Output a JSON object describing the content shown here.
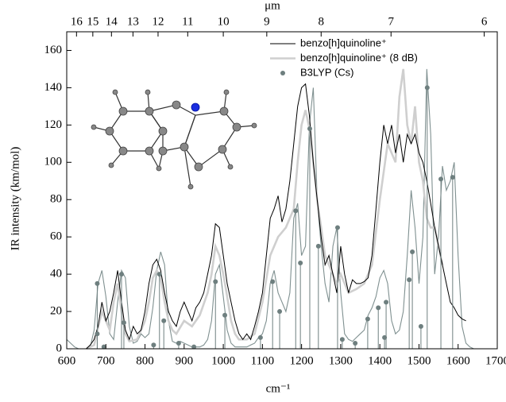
{
  "chart_data": {
    "type": "line",
    "xlabel": "cm⁻¹",
    "ylabel": "IR  intensity  (km/mol)",
    "x2label": "μm",
    "xlim": [
      600,
      1700
    ],
    "xticks": [
      600,
      700,
      800,
      900,
      1000,
      1100,
      1200,
      1300,
      1400,
      1500,
      1600,
      1700
    ],
    "ylim": [
      0,
      170
    ],
    "yticks": [
      0,
      20,
      40,
      60,
      80,
      100,
      120,
      140,
      160
    ],
    "x2ticks": [
      16,
      15,
      14,
      13,
      12,
      11,
      10,
      9,
      8,
      7,
      6
    ],
    "legend_position": "top-right",
    "series": [
      {
        "name": "benzo[h]quinoline⁺",
        "color": "#000000",
        "style": "line",
        "x": [
          650,
          660,
          670,
          680,
          690,
          700,
          710,
          720,
          730,
          740,
          750,
          760,
          770,
          780,
          790,
          800,
          810,
          820,
          830,
          840,
          850,
          860,
          870,
          880,
          890,
          900,
          910,
          920,
          930,
          940,
          950,
          960,
          970,
          980,
          990,
          1000,
          1010,
          1020,
          1030,
          1040,
          1050,
          1060,
          1070,
          1080,
          1090,
          1100,
          1110,
          1120,
          1130,
          1140,
          1150,
          1160,
          1170,
          1180,
          1190,
          1200,
          1210,
          1220,
          1230,
          1240,
          1250,
          1260,
          1270,
          1280,
          1290,
          1300,
          1310,
          1320,
          1330,
          1340,
          1350,
          1360,
          1370,
          1380,
          1390,
          1400,
          1410,
          1420,
          1430,
          1440,
          1450,
          1460,
          1470,
          1480,
          1490,
          1500,
          1510,
          1520,
          1530,
          1540,
          1550,
          1560,
          1570,
          1580,
          1590,
          1600,
          1610,
          1620
        ],
        "values": [
          0,
          2,
          5,
          12,
          25,
          15,
          20,
          30,
          42,
          25,
          10,
          5,
          12,
          8,
          10,
          20,
          35,
          45,
          48,
          42,
          30,
          20,
          15,
          12,
          20,
          25,
          20,
          15,
          22,
          25,
          30,
          40,
          50,
          67,
          65,
          50,
          35,
          25,
          15,
          8,
          5,
          8,
          5,
          12,
          20,
          30,
          50,
          70,
          75,
          82,
          68,
          75,
          90,
          110,
          130,
          140,
          142,
          125,
          100,
          80,
          60,
          45,
          50,
          40,
          30,
          55,
          40,
          30,
          37,
          35,
          35,
          36,
          38,
          50,
          75,
          100,
          120,
          110,
          120,
          105,
          115,
          100,
          115,
          110,
          115,
          105,
          100,
          90,
          78,
          65,
          55,
          45,
          35,
          25,
          22,
          18,
          16,
          15
        ]
      },
      {
        "name": "benzo[h]quinoline⁺ (8 dB)",
        "color": "#cfcfcf",
        "style": "line",
        "x": [
          650,
          670,
          690,
          710,
          720,
          730,
          740,
          750,
          760,
          780,
          800,
          810,
          820,
          830,
          840,
          850,
          860,
          870,
          880,
          900,
          920,
          940,
          960,
          970,
          980,
          990,
          1000,
          1010,
          1020,
          1030,
          1040,
          1060,
          1080,
          1100,
          1120,
          1140,
          1160,
          1180,
          1190,
          1200,
          1210,
          1220,
          1230,
          1240,
          1250,
          1260,
          1270,
          1280,
          1290,
          1300,
          1320,
          1340,
          1360,
          1380,
          1400,
          1420,
          1430,
          1440,
          1450,
          1460,
          1470,
          1480,
          1490,
          1500,
          1510,
          1520,
          1530,
          1540,
          1550,
          1560
        ],
        "values": [
          0,
          2,
          20,
          10,
          25,
          35,
          20,
          8,
          4,
          5,
          15,
          25,
          38,
          42,
          38,
          25,
          15,
          10,
          8,
          15,
          12,
          18,
          30,
          40,
          55,
          50,
          40,
          28,
          15,
          8,
          5,
          5,
          8,
          25,
          50,
          60,
          65,
          75,
          100,
          120,
          128,
          118,
          100,
          80,
          65,
          50,
          45,
          40,
          35,
          40,
          30,
          32,
          35,
          45,
          80,
          110,
          105,
          100,
          135,
          150,
          120,
          110,
          130,
          100,
          90,
          70,
          65,
          65,
          55,
          45
        ]
      },
      {
        "name": "B3LYP (Cs)",
        "color": "#6e7f7f",
        "style": "sticks",
        "x": [
          678,
          678,
          695,
          740,
          746,
          822,
          837,
          848,
          886,
          925,
          980,
          1004,
          1095,
          1126,
          1144,
          1185,
          1197,
          1221,
          1243,
          1292,
          1304,
          1337,
          1369,
          1396,
          1412,
          1416,
          1475,
          1483,
          1505,
          1521,
          1556,
          1586
        ],
        "values": [
          35,
          8,
          1,
          40,
          14,
          2,
          40,
          15,
          3,
          1,
          36,
          18,
          6,
          36,
          20,
          74,
          46,
          118,
          55,
          65,
          5,
          3,
          16,
          22,
          6,
          25,
          37,
          52,
          12,
          140,
          91,
          92
        ]
      }
    ],
    "envelope": {
      "color": "#7f9090",
      "x": [
        600,
        610,
        620,
        630,
        640,
        650,
        660,
        670,
        680,
        690,
        700,
        710,
        720,
        730,
        740,
        750,
        760,
        770,
        780,
        790,
        800,
        810,
        820,
        830,
        840,
        850,
        860,
        870,
        880,
        890,
        900,
        910,
        920,
        930,
        940,
        950,
        960,
        970,
        980,
        990,
        1000,
        1010,
        1020,
        1030,
        1040,
        1050,
        1060,
        1070,
        1080,
        1090,
        1100,
        1110,
        1120,
        1130,
        1140,
        1150,
        1160,
        1170,
        1180,
        1190,
        1200,
        1210,
        1220,
        1230,
        1240,
        1250,
        1260,
        1270,
        1280,
        1290,
        1300,
        1310,
        1320,
        1330,
        1340,
        1350,
        1360,
        1370,
        1380,
        1390,
        1400,
        1410,
        1420,
        1430,
        1440,
        1450,
        1460,
        1470,
        1480,
        1490,
        1500,
        1510,
        1520,
        1530,
        1540,
        1550,
        1560,
        1570,
        1580,
        1590,
        1600,
        1610,
        1620,
        1630,
        1640,
        1650,
        1660,
        1670,
        1680,
        1690,
        1700
      ],
      "values": [
        5,
        3,
        1,
        0,
        0,
        0,
        1,
        10,
        35,
        42,
        28,
        8,
        5,
        25,
        42,
        38,
        12,
        3,
        4,
        8,
        6,
        8,
        22,
        42,
        52,
        45,
        15,
        4,
        3,
        4,
        3,
        2,
        1,
        1,
        1,
        2,
        5,
        15,
        40,
        45,
        28,
        10,
        3,
        1,
        1,
        1,
        1,
        2,
        3,
        6,
        8,
        15,
        35,
        42,
        30,
        25,
        20,
        30,
        70,
        78,
        50,
        55,
        120,
        140,
        80,
        55,
        35,
        25,
        55,
        65,
        30,
        8,
        5,
        4,
        6,
        8,
        10,
        18,
        22,
        28,
        38,
        42,
        35,
        15,
        8,
        10,
        20,
        50,
        85,
        65,
        35,
        60,
        150,
        115,
        40,
        60,
        98,
        85,
        90,
        100,
        50,
        12,
        3,
        1,
        0,
        0,
        0,
        0,
        0,
        0,
        0
      ]
    }
  }
}
